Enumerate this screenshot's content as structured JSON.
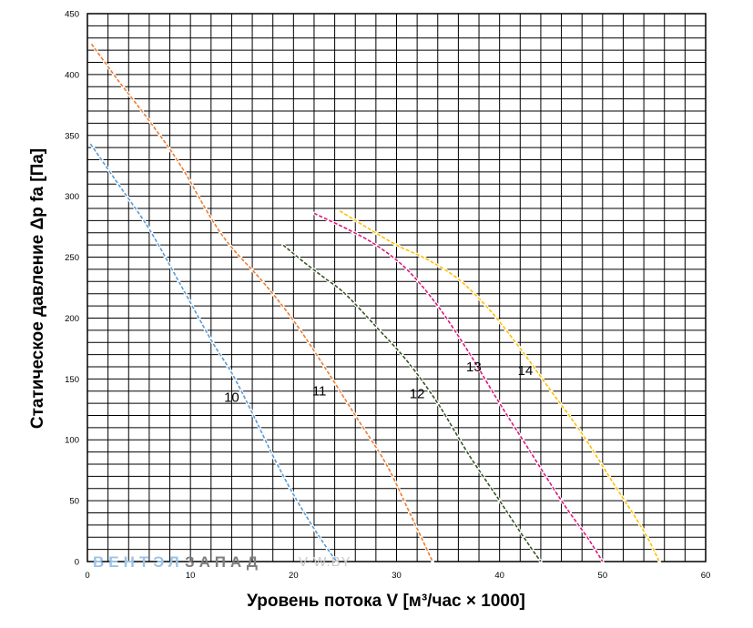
{
  "chart_data": {
    "type": "line",
    "title": "",
    "xlabel": "Уровень потока V [м³/час × 1000]",
    "ylabel": "Статическое давление Δp fa [Па]",
    "xlim": [
      0,
      60
    ],
    "ylim": [
      0,
      450
    ],
    "xticks": [
      "0",
      "10",
      "20",
      "30",
      "40",
      "50",
      "60"
    ],
    "yticks": [
      "0",
      "50",
      "100",
      "150",
      "200",
      "250",
      "300",
      "350",
      "400",
      "450"
    ],
    "grid": true,
    "minor_grid": {
      "x_step": 2,
      "y_step": 10
    },
    "series": [
      {
        "name": "10",
        "color": "#5b9bd5",
        "dashed": true,
        "label_at": [
          14,
          135
        ],
        "points": [
          [
            0.3,
            343
          ],
          [
            3,
            310
          ],
          [
            6,
            273
          ],
          [
            9,
            228
          ],
          [
            12,
            182
          ],
          [
            14,
            155
          ],
          [
            16,
            122
          ],
          [
            18,
            87
          ],
          [
            20,
            55
          ],
          [
            22,
            27
          ],
          [
            23.5,
            8
          ],
          [
            24.2,
            0
          ]
        ]
      },
      {
        "name": "11",
        "color": "#ed7d31",
        "dashed": true,
        "label_at": [
          22.5,
          140
        ],
        "points": [
          [
            0.4,
            425
          ],
          [
            3,
            395
          ],
          [
            6,
            362
          ],
          [
            9,
            326
          ],
          [
            12,
            282
          ],
          [
            14,
            258
          ],
          [
            17,
            230
          ],
          [
            20,
            198
          ],
          [
            23,
            160
          ],
          [
            26,
            120
          ],
          [
            29,
            80
          ],
          [
            31,
            45
          ],
          [
            32.5,
            18
          ],
          [
            33.5,
            0
          ]
        ]
      },
      {
        "name": "12",
        "color": "#375623",
        "dashed": true,
        "label_at": [
          32,
          138
        ],
        "points": [
          [
            19,
            260
          ],
          [
            21,
            246
          ],
          [
            23,
            233
          ],
          [
            25,
            220
          ],
          [
            28,
            193
          ],
          [
            31,
            165
          ],
          [
            34,
            130
          ],
          [
            37,
            88
          ],
          [
            40,
            50
          ],
          [
            42.5,
            18
          ],
          [
            44,
            0
          ]
        ]
      },
      {
        "name": "13",
        "color": "#e0157f",
        "dashed": true,
        "label_at": [
          37.5,
          160
        ],
        "points": [
          [
            22,
            286
          ],
          [
            25,
            274
          ],
          [
            28,
            260
          ],
          [
            31,
            240
          ],
          [
            34,
            210
          ],
          [
            37,
            172
          ],
          [
            40,
            130
          ],
          [
            43,
            90
          ],
          [
            46,
            50
          ],
          [
            48.5,
            20
          ],
          [
            50,
            0
          ]
        ]
      },
      {
        "name": "14",
        "color": "#ffc000",
        "dashed": true,
        "label_at": [
          42.5,
          157
        ],
        "points": [
          [
            24.5,
            288
          ],
          [
            27,
            275
          ],
          [
            30,
            260
          ],
          [
            33,
            248
          ],
          [
            36,
            232
          ],
          [
            39,
            207
          ],
          [
            42,
            175
          ],
          [
            45,
            140
          ],
          [
            48,
            105
          ],
          [
            51,
            65
          ],
          [
            54,
            25
          ],
          [
            55.5,
            0
          ]
        ]
      }
    ]
  },
  "watermark": {
    "part1": "ВЕНТЭЛ",
    "part2": "ЗАПАД",
    "url": "V-W.BY",
    "color1": "#9dc3e6",
    "color2": "#7f7f7f",
    "color_url": "#c9c9c9"
  }
}
